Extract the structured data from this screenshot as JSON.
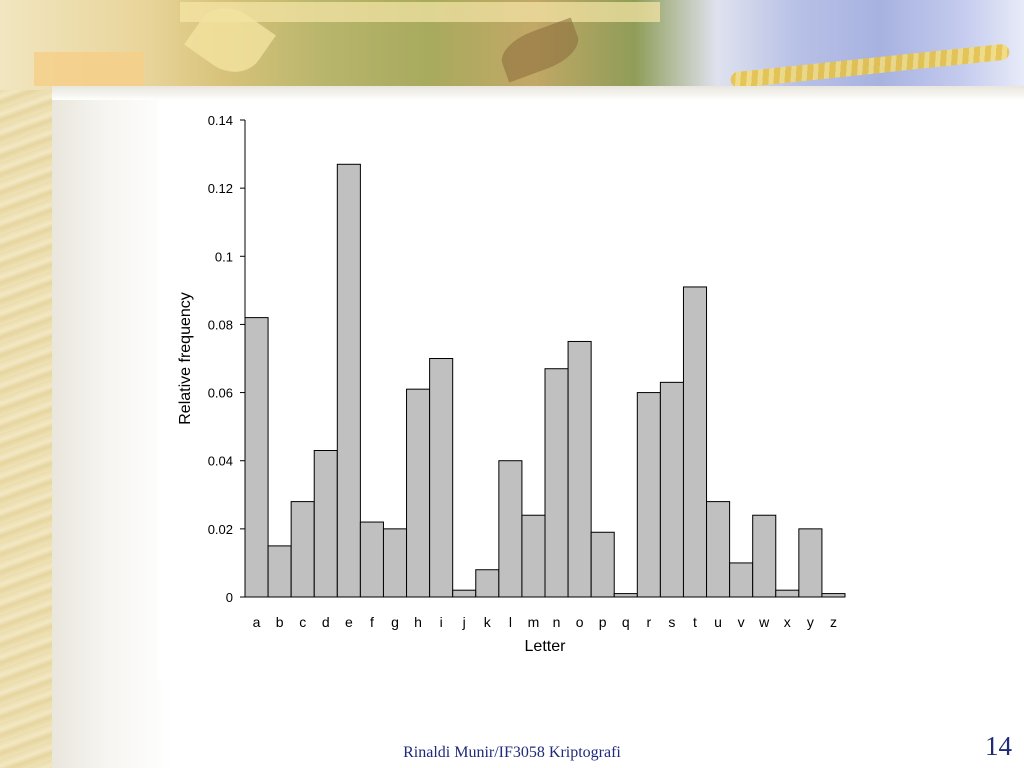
{
  "chart_data": {
    "type": "bar",
    "categories": [
      "a",
      "b",
      "c",
      "d",
      "e",
      "f",
      "g",
      "h",
      "i",
      "j",
      "k",
      "l",
      "m",
      "n",
      "o",
      "p",
      "q",
      "r",
      "s",
      "t",
      "u",
      "v",
      "w",
      "x",
      "y",
      "z"
    ],
    "values": [
      0.082,
      0.015,
      0.028,
      0.043,
      0.127,
      0.022,
      0.02,
      0.061,
      0.07,
      0.002,
      0.008,
      0.04,
      0.024,
      0.067,
      0.075,
      0.019,
      0.001,
      0.06,
      0.063,
      0.091,
      0.028,
      0.01,
      0.024,
      0.002,
      0.02,
      0.001
    ],
    "xlabel": "Letter",
    "ylabel": "Relative frequency",
    "ylim": [
      0,
      0.14
    ],
    "yticks": [
      "0",
      "0.02",
      "0.04",
      "0.06",
      "0.08",
      "0.1",
      "0.12",
      "0.14"
    ],
    "grid": false,
    "bar_color": "#c0c0c0",
    "bar_edge_color": "#000000"
  },
  "footer": {
    "text": "Rinaldi Munir/IF3058 Kriptografi",
    "page_number": "14"
  },
  "colors": {
    "footer_text": "#1f2a7a"
  }
}
